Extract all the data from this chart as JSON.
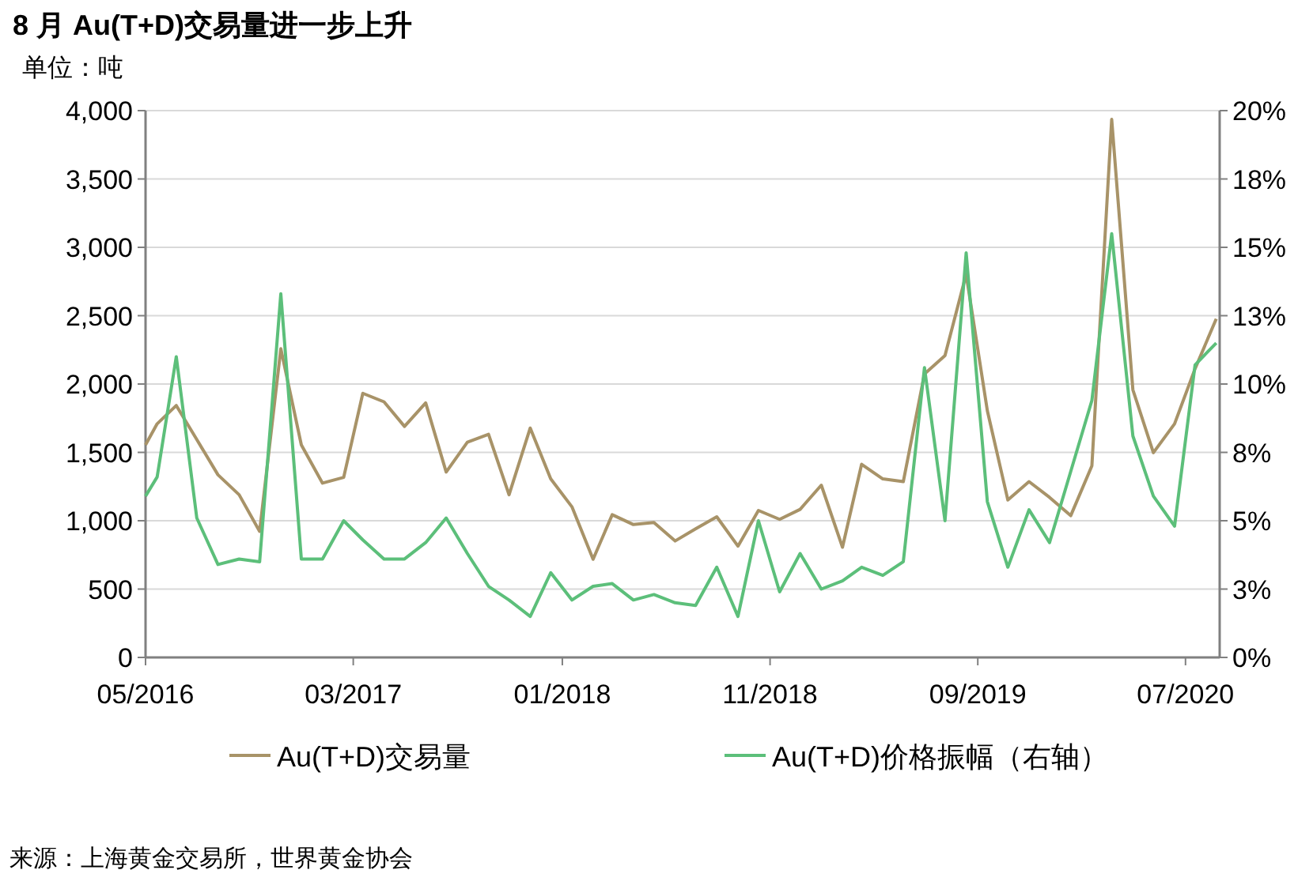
{
  "chart_data": {
    "type": "line",
    "title": "8 月 Au(T+D)交易量进一步上升",
    "ylabel": "单位：吨",
    "x": [
      "2016-05-01",
      "2016-05-18",
      "2016-06-15",
      "2016-07-15",
      "2016-08-15",
      "2016-09-15",
      "2016-10-15",
      "2016-11-15",
      "2016-12-15",
      "2017-01-15",
      "2017-02-15",
      "2017-03-15",
      "2017-04-15",
      "2017-05-15",
      "2017-06-15",
      "2017-07-15",
      "2017-08-15",
      "2017-09-15",
      "2017-10-15",
      "2017-11-15",
      "2017-12-15",
      "2018-01-15",
      "2018-02-15",
      "2018-03-15",
      "2018-04-15",
      "2018-05-15",
      "2018-06-15",
      "2018-07-15",
      "2018-08-15",
      "2018-09-15",
      "2018-10-15",
      "2018-11-15",
      "2018-12-15",
      "2019-01-15",
      "2019-02-15",
      "2019-03-15",
      "2019-04-15",
      "2019-05-15",
      "2019-06-15",
      "2019-07-15",
      "2019-08-15",
      "2019-09-15",
      "2019-10-15",
      "2019-11-15",
      "2019-12-15",
      "2020-01-15",
      "2020-02-15",
      "2020-03-15",
      "2020-04-15",
      "2020-05-15",
      "2020-06-15",
      "2020-07-15",
      "2020-08-15"
    ],
    "series": [
      {
        "name": "Au(T+D)交易量",
        "color": "#a89368",
        "values": [
          1555,
          1709,
          1843,
          1594,
          1336,
          1190,
          922,
          2258,
          1555,
          1275,
          1317,
          1932,
          1870,
          1690,
          1862,
          1356,
          1574,
          1632,
          1190,
          1678,
          1306,
          1102,
          718,
          1044,
          972,
          987,
          852,
          941,
          1029,
          814,
          1075,
          1010,
          1083,
          1260,
          806,
          1413,
          1306,
          1286,
          2074,
          2208,
          2803,
          1805,
          1152,
          1286,
          1171,
          1037,
          1402,
          3936,
          1958,
          1498,
          1709,
          2112,
          2477
        ]
      },
      {
        "name": "Au(T+D)价格振幅（右轴）",
        "color": "#5cbf7a",
        "axis": "y2",
        "values": [
          5.9,
          6.6,
          11.0,
          5.1,
          3.4,
          3.6,
          3.5,
          13.3,
          3.6,
          3.6,
          5.0,
          4.3,
          3.6,
          3.6,
          4.2,
          5.1,
          3.8,
          2.6,
          2.1,
          1.5,
          3.1,
          2.1,
          2.6,
          2.7,
          2.1,
          2.3,
          2.0,
          1.9,
          3.3,
          1.5,
          5.0,
          2.4,
          3.8,
          2.5,
          2.8,
          3.3,
          3.0,
          3.5,
          10.6,
          5.0,
          14.8,
          5.7,
          3.3,
          5.4,
          4.2,
          6.8,
          9.4,
          15.5,
          8.1,
          5.9,
          4.8,
          10.7,
          11.5
        ]
      }
    ],
    "xlim": [
      "2016-05",
      "2020-08-20"
    ],
    "xticks": [
      {
        "value": "2016-05",
        "label": "05/2016"
      },
      {
        "value": "2017-03",
        "label": "03/2017"
      },
      {
        "value": "2018-01",
        "label": "01/2018"
      },
      {
        "value": "2018-11",
        "label": "11/2018"
      },
      {
        "value": "2019-09",
        "label": "09/2019"
      },
      {
        "value": "2020-07",
        "label": "07/2020"
      }
    ],
    "ylim": [
      0,
      4000
    ],
    "yticks": [
      {
        "value": 0,
        "label": "0"
      },
      {
        "value": 500,
        "label": "500"
      },
      {
        "value": 1000,
        "label": "1,000"
      },
      {
        "value": 1500,
        "label": "1,500"
      },
      {
        "value": 2000,
        "label": "2,000"
      },
      {
        "value": 2500,
        "label": "2,500"
      },
      {
        "value": 3000,
        "label": "3,000"
      },
      {
        "value": 3500,
        "label": "3,500"
      },
      {
        "value": 4000,
        "label": "4,000"
      }
    ],
    "y2lim": [
      0,
      20
    ],
    "y2ticks": [
      {
        "value": 0,
        "label": "0%"
      },
      {
        "value": 2.5,
        "label": "3%"
      },
      {
        "value": 5,
        "label": "5%"
      },
      {
        "value": 7.5,
        "label": "8%"
      },
      {
        "value": 10,
        "label": "10%"
      },
      {
        "value": 12.5,
        "label": "13%"
      },
      {
        "value": 15,
        "label": "15%"
      },
      {
        "value": 17.5,
        "label": "18%"
      },
      {
        "value": 20,
        "label": "20%"
      }
    ],
    "grid": "y",
    "legend": "bottom",
    "marker": "none",
    "line_style": "solid",
    "annotations": [
      "来源：上海黄金交易所，世界黄金协会"
    ]
  }
}
